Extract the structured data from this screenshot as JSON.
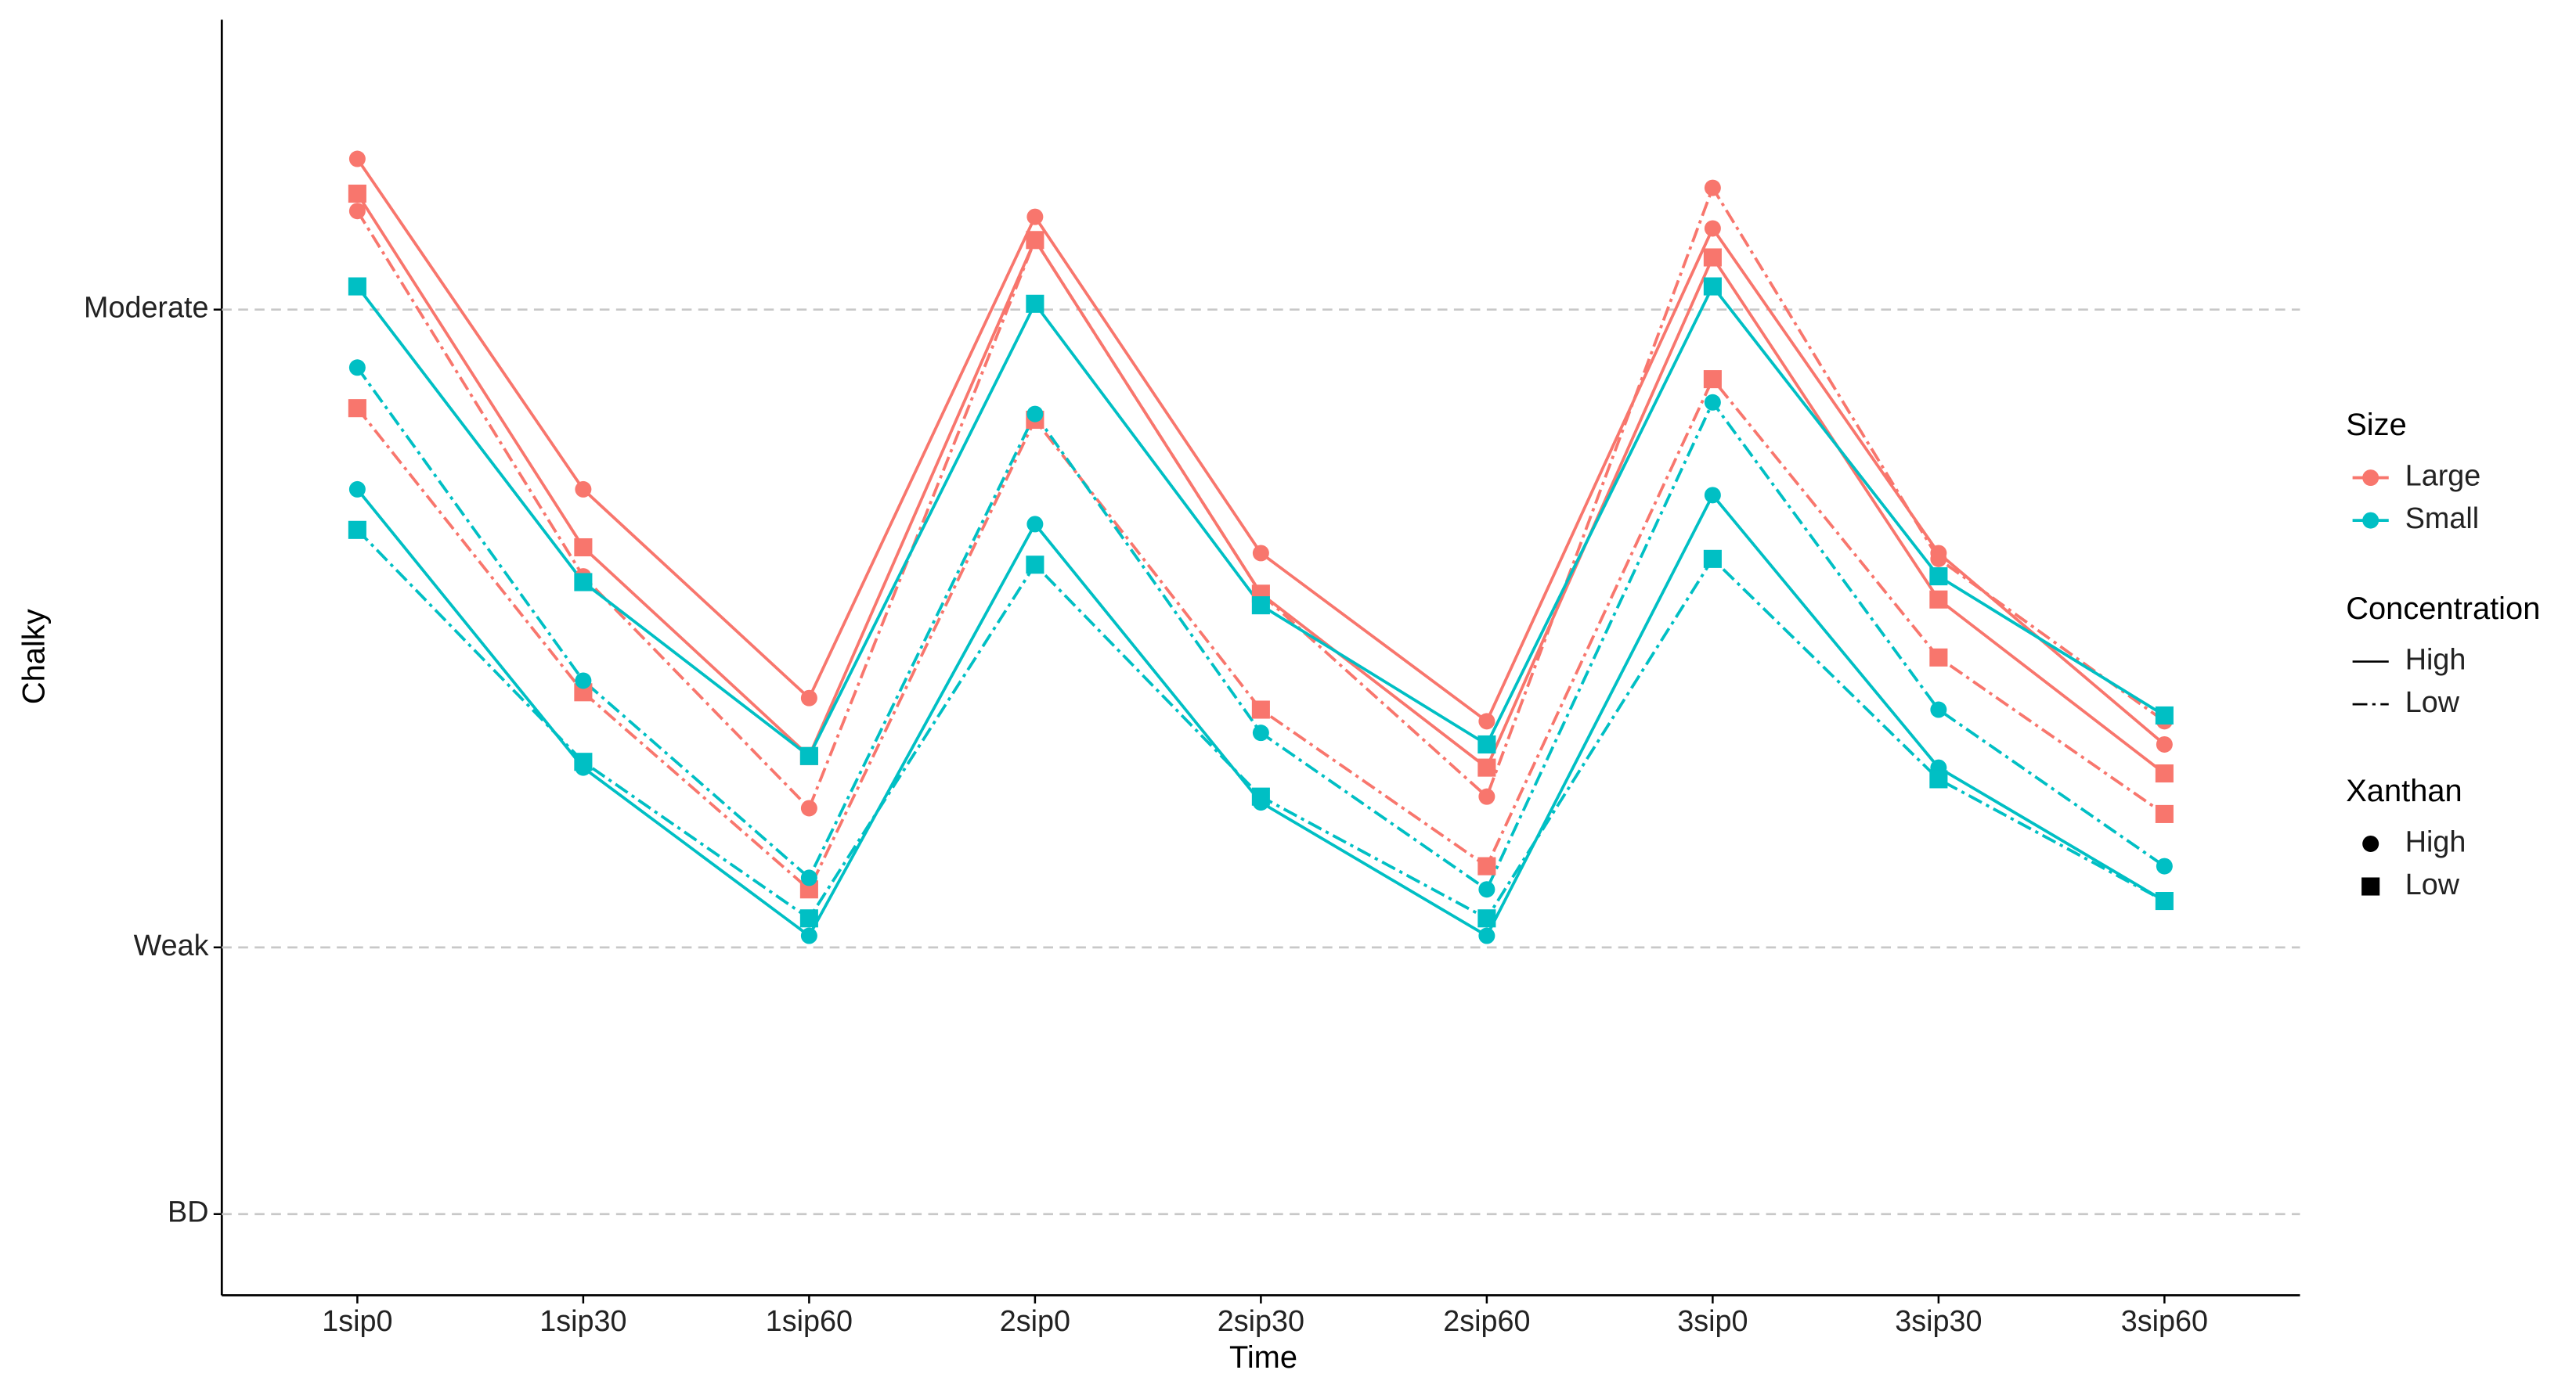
{
  "chart_data": {
    "type": "line",
    "x_label": "Time",
    "y_label": "Chalky",
    "categories": [
      "1sip0",
      "1sip30",
      "1sip60",
      "2sip0",
      "2sip30",
      "2sip60",
      "3sip0",
      "3sip30",
      "3sip60"
    ],
    "ylim": [
      0,
      22
    ],
    "yticks": [
      {
        "value": 1.4,
        "label": "BD"
      },
      {
        "value": 6,
        "label": "Weak"
      },
      {
        "value": 17,
        "label": "Moderate"
      }
    ],
    "grid": true,
    "legend_position": "right",
    "legend": [
      {
        "title": "Size",
        "items": [
          {
            "label": "Large",
            "color": "#f8766d",
            "marker": "circle"
          },
          {
            "label": "Small",
            "color": "#00bfc4",
            "marker": "circle"
          }
        ]
      },
      {
        "title": "Concentration",
        "items": [
          {
            "label": "High",
            "dash": "solid"
          },
          {
            "label": "Low",
            "dash": "dashdot"
          }
        ]
      },
      {
        "title": "Xanthan",
        "items": [
          {
            "label": "High",
            "marker": "circle"
          },
          {
            "label": "Low",
            "marker": "square"
          }
        ]
      }
    ],
    "series": [
      {
        "color": "#f8766d",
        "dash": "solid",
        "marker": "circle",
        "values": [
          19.6,
          13.9,
          10.3,
          18.6,
          12.8,
          9.9,
          18.4,
          12.8,
          9.5
        ]
      },
      {
        "color": "#f8766d",
        "dash": "solid",
        "marker": "square",
        "values": [
          19.0,
          12.9,
          9.3,
          18.2,
          12.1,
          9.1,
          17.9,
          12.0,
          9.0
        ]
      },
      {
        "color": "#f8766d",
        "dash": "dashdot",
        "marker": "circle",
        "values": [
          18.7,
          12.4,
          8.4,
          18.2,
          12.1,
          8.6,
          19.1,
          12.7,
          9.9
        ]
      },
      {
        "color": "#f8766d",
        "dash": "dashdot",
        "marker": "square",
        "values": [
          15.3,
          10.4,
          7.0,
          15.1,
          10.1,
          7.4,
          15.8,
          11.0,
          8.3
        ]
      },
      {
        "color": "#00bfc4",
        "dash": "solid",
        "marker": "square",
        "values": [
          17.4,
          12.3,
          9.3,
          17.1,
          11.9,
          9.5,
          17.4,
          12.4,
          10.0
        ]
      },
      {
        "color": "#00bfc4",
        "dash": "dashdot",
        "marker": "circle",
        "values": [
          16.0,
          10.6,
          7.2,
          15.2,
          9.7,
          7.0,
          15.4,
          10.1,
          7.4
        ]
      },
      {
        "color": "#00bfc4",
        "dash": "solid",
        "marker": "circle",
        "values": [
          13.9,
          9.1,
          6.2,
          13.3,
          8.5,
          6.2,
          13.8,
          9.1,
          6.8
        ]
      },
      {
        "color": "#00bfc4",
        "dash": "dashdot",
        "marker": "square",
        "values": [
          13.2,
          9.2,
          6.5,
          12.6,
          8.6,
          6.5,
          12.7,
          8.9,
          6.8
        ]
      }
    ]
  }
}
